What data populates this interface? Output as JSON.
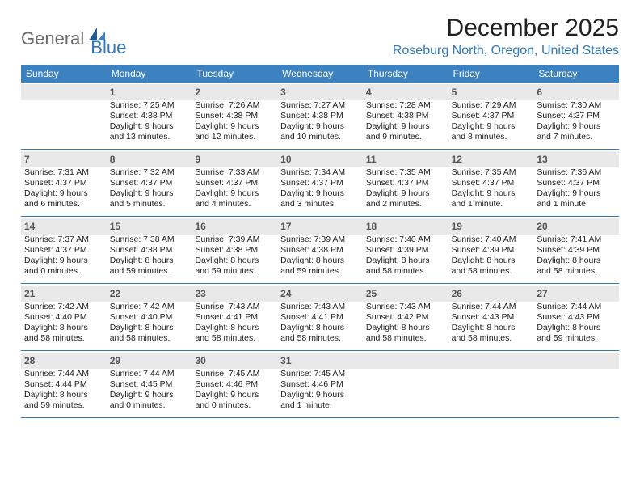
{
  "logo": {
    "text1": "General",
    "text2": "Blue"
  },
  "title": "December 2025",
  "location": "Roseburg North, Oregon, United States",
  "colors": {
    "header_bg": "#3c81c0",
    "accent": "#2f78b8",
    "daynum_bg": "#e9e9e9",
    "text": "#212121",
    "logo_gray": "#6b6b6b"
  },
  "fonts": {
    "title_size": 30,
    "location_size": 16,
    "header_size": 12,
    "body_size": 10.5
  },
  "day_labels": [
    "Sunday",
    "Monday",
    "Tuesday",
    "Wednesday",
    "Thursday",
    "Friday",
    "Saturday"
  ],
  "weeks": [
    [
      {
        "n": "",
        "sr": "",
        "ss": "",
        "dl": ""
      },
      {
        "n": "1",
        "sr": "Sunrise: 7:25 AM",
        "ss": "Sunset: 4:38 PM",
        "dl": "Daylight: 9 hours and 13 minutes."
      },
      {
        "n": "2",
        "sr": "Sunrise: 7:26 AM",
        "ss": "Sunset: 4:38 PM",
        "dl": "Daylight: 9 hours and 12 minutes."
      },
      {
        "n": "3",
        "sr": "Sunrise: 7:27 AM",
        "ss": "Sunset: 4:38 PM",
        "dl": "Daylight: 9 hours and 10 minutes."
      },
      {
        "n": "4",
        "sr": "Sunrise: 7:28 AM",
        "ss": "Sunset: 4:38 PM",
        "dl": "Daylight: 9 hours and 9 minutes."
      },
      {
        "n": "5",
        "sr": "Sunrise: 7:29 AM",
        "ss": "Sunset: 4:37 PM",
        "dl": "Daylight: 9 hours and 8 minutes."
      },
      {
        "n": "6",
        "sr": "Sunrise: 7:30 AM",
        "ss": "Sunset: 4:37 PM",
        "dl": "Daylight: 9 hours and 7 minutes."
      }
    ],
    [
      {
        "n": "7",
        "sr": "Sunrise: 7:31 AM",
        "ss": "Sunset: 4:37 PM",
        "dl": "Daylight: 9 hours and 6 minutes."
      },
      {
        "n": "8",
        "sr": "Sunrise: 7:32 AM",
        "ss": "Sunset: 4:37 PM",
        "dl": "Daylight: 9 hours and 5 minutes."
      },
      {
        "n": "9",
        "sr": "Sunrise: 7:33 AM",
        "ss": "Sunset: 4:37 PM",
        "dl": "Daylight: 9 hours and 4 minutes."
      },
      {
        "n": "10",
        "sr": "Sunrise: 7:34 AM",
        "ss": "Sunset: 4:37 PM",
        "dl": "Daylight: 9 hours and 3 minutes."
      },
      {
        "n": "11",
        "sr": "Sunrise: 7:35 AM",
        "ss": "Sunset: 4:37 PM",
        "dl": "Daylight: 9 hours and 2 minutes."
      },
      {
        "n": "12",
        "sr": "Sunrise: 7:35 AM",
        "ss": "Sunset: 4:37 PM",
        "dl": "Daylight: 9 hours and 1 minute."
      },
      {
        "n": "13",
        "sr": "Sunrise: 7:36 AM",
        "ss": "Sunset: 4:37 PM",
        "dl": "Daylight: 9 hours and 1 minute."
      }
    ],
    [
      {
        "n": "14",
        "sr": "Sunrise: 7:37 AM",
        "ss": "Sunset: 4:37 PM",
        "dl": "Daylight: 9 hours and 0 minutes."
      },
      {
        "n": "15",
        "sr": "Sunrise: 7:38 AM",
        "ss": "Sunset: 4:38 PM",
        "dl": "Daylight: 8 hours and 59 minutes."
      },
      {
        "n": "16",
        "sr": "Sunrise: 7:39 AM",
        "ss": "Sunset: 4:38 PM",
        "dl": "Daylight: 8 hours and 59 minutes."
      },
      {
        "n": "17",
        "sr": "Sunrise: 7:39 AM",
        "ss": "Sunset: 4:38 PM",
        "dl": "Daylight: 8 hours and 59 minutes."
      },
      {
        "n": "18",
        "sr": "Sunrise: 7:40 AM",
        "ss": "Sunset: 4:39 PM",
        "dl": "Daylight: 8 hours and 58 minutes."
      },
      {
        "n": "19",
        "sr": "Sunrise: 7:40 AM",
        "ss": "Sunset: 4:39 PM",
        "dl": "Daylight: 8 hours and 58 minutes."
      },
      {
        "n": "20",
        "sr": "Sunrise: 7:41 AM",
        "ss": "Sunset: 4:39 PM",
        "dl": "Daylight: 8 hours and 58 minutes."
      }
    ],
    [
      {
        "n": "21",
        "sr": "Sunrise: 7:42 AM",
        "ss": "Sunset: 4:40 PM",
        "dl": "Daylight: 8 hours and 58 minutes."
      },
      {
        "n": "22",
        "sr": "Sunrise: 7:42 AM",
        "ss": "Sunset: 4:40 PM",
        "dl": "Daylight: 8 hours and 58 minutes."
      },
      {
        "n": "23",
        "sr": "Sunrise: 7:43 AM",
        "ss": "Sunset: 4:41 PM",
        "dl": "Daylight: 8 hours and 58 minutes."
      },
      {
        "n": "24",
        "sr": "Sunrise: 7:43 AM",
        "ss": "Sunset: 4:41 PM",
        "dl": "Daylight: 8 hours and 58 minutes."
      },
      {
        "n": "25",
        "sr": "Sunrise: 7:43 AM",
        "ss": "Sunset: 4:42 PM",
        "dl": "Daylight: 8 hours and 58 minutes."
      },
      {
        "n": "26",
        "sr": "Sunrise: 7:44 AM",
        "ss": "Sunset: 4:43 PM",
        "dl": "Daylight: 8 hours and 58 minutes."
      },
      {
        "n": "27",
        "sr": "Sunrise: 7:44 AM",
        "ss": "Sunset: 4:43 PM",
        "dl": "Daylight: 8 hours and 59 minutes."
      }
    ],
    [
      {
        "n": "28",
        "sr": "Sunrise: 7:44 AM",
        "ss": "Sunset: 4:44 PM",
        "dl": "Daylight: 8 hours and 59 minutes."
      },
      {
        "n": "29",
        "sr": "Sunrise: 7:44 AM",
        "ss": "Sunset: 4:45 PM",
        "dl": "Daylight: 9 hours and 0 minutes."
      },
      {
        "n": "30",
        "sr": "Sunrise: 7:45 AM",
        "ss": "Sunset: 4:46 PM",
        "dl": "Daylight: 9 hours and 0 minutes."
      },
      {
        "n": "31",
        "sr": "Sunrise: 7:45 AM",
        "ss": "Sunset: 4:46 PM",
        "dl": "Daylight: 9 hours and 1 minute."
      },
      {
        "n": "",
        "sr": "",
        "ss": "",
        "dl": ""
      },
      {
        "n": "",
        "sr": "",
        "ss": "",
        "dl": ""
      },
      {
        "n": "",
        "sr": "",
        "ss": "",
        "dl": ""
      }
    ]
  ]
}
